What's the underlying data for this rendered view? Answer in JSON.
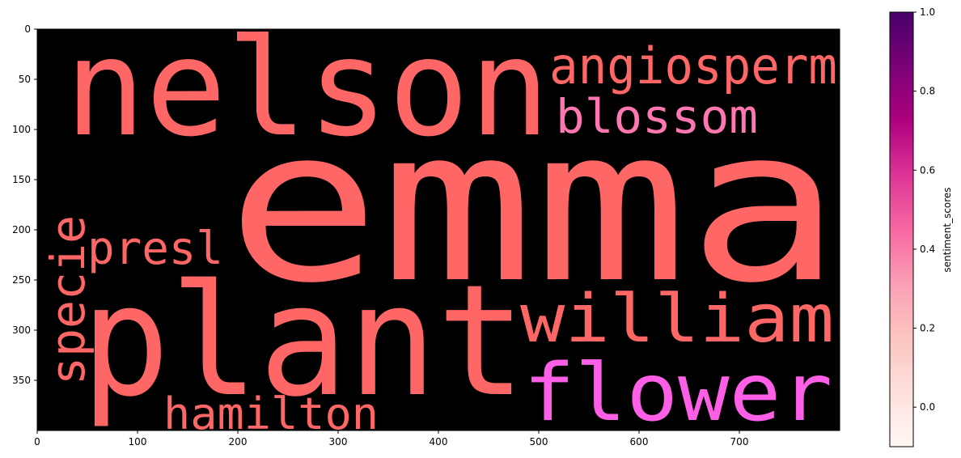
{
  "chart_data": {
    "type": "wordcloud",
    "title": "",
    "background": "#000000",
    "xlim": [
      0,
      800
    ],
    "ylim": [
      400,
      0
    ],
    "x_ticks": [
      0,
      100,
      200,
      300,
      400,
      500,
      600,
      700
    ],
    "y_ticks": [
      0,
      50,
      100,
      150,
      200,
      250,
      300,
      350
    ],
    "words": [
      {
        "text": "emma",
        "color": "#ff6666"
      },
      {
        "text": "nelson",
        "color": "#ff6666"
      },
      {
        "text": "plant",
        "color": "#ff6666"
      },
      {
        "text": "angiosperm",
        "color": "#ff6666"
      },
      {
        "text": "blossom",
        "color": "#ff77b0"
      },
      {
        "text": "william",
        "color": "#ff6666"
      },
      {
        "text": "flower",
        "color": "#ff5fe6"
      },
      {
        "text": "presl",
        "color": "#ff6666"
      },
      {
        "text": "specie",
        "color": "#ff6666"
      },
      {
        "text": "hamilton",
        "color": "#ff6666"
      }
    ],
    "colorbar": {
      "label": "sentiment_scores",
      "min": -0.1,
      "max": 1.0,
      "ticks": [
        0.0,
        0.2,
        0.4,
        0.6,
        0.8,
        1.0
      ],
      "tick_labels": [
        "0.0",
        "0.2",
        "0.4",
        "0.6",
        "0.8",
        "1.0"
      ],
      "colormap": "RdPu",
      "colors": [
        "#fff7f3",
        "#fde0dd",
        "#fcc5c0",
        "#fa9fb5",
        "#f768a1",
        "#dd3497",
        "#ae017e",
        "#7a0177",
        "#49006a"
      ]
    }
  }
}
